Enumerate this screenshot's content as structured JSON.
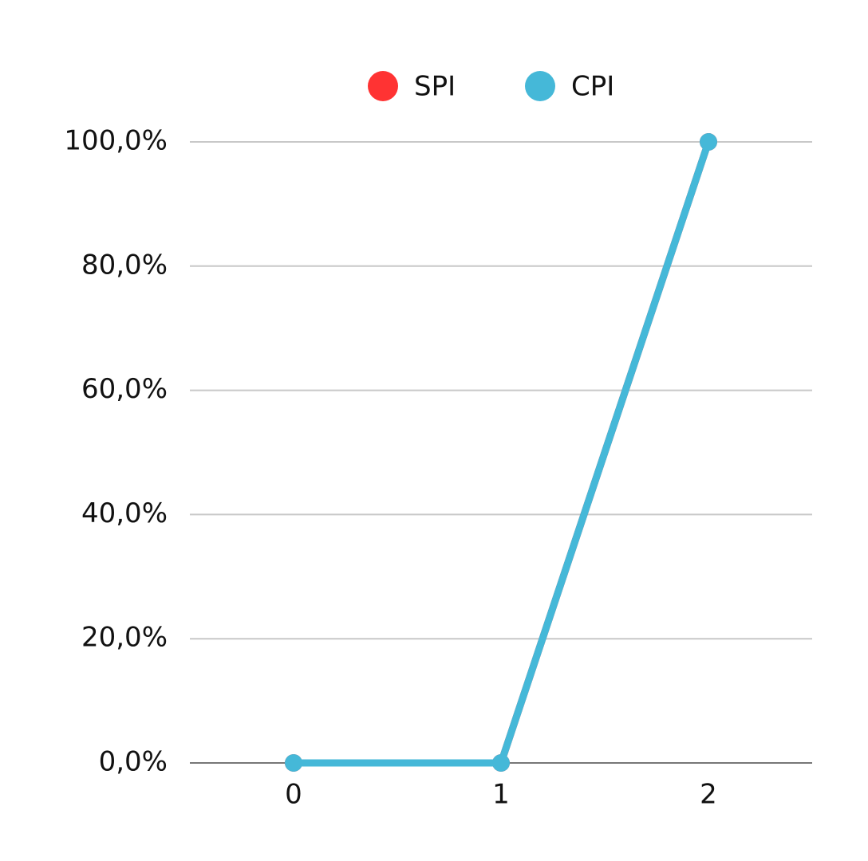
{
  "chart_data": {
    "type": "line",
    "categories": [
      "0",
      "1",
      "2"
    ],
    "series": [
      {
        "name": "SPI",
        "color": "#ff3333",
        "values": [
          0,
          0,
          100
        ]
      },
      {
        "name": "CPI",
        "color": "#45b8d8",
        "values": [
          0,
          0,
          100
        ]
      }
    ],
    "ylim": [
      0,
      100
    ],
    "yticks": [
      {
        "value": 0,
        "label": "0,0%"
      },
      {
        "value": 20,
        "label": "20,0%"
      },
      {
        "value": 40,
        "label": "40,0%"
      },
      {
        "value": 60,
        "label": "60,0%"
      },
      {
        "value": 80,
        "label": "80,0%"
      },
      {
        "value": 100,
        "label": "100,0%"
      }
    ],
    "grid": true,
    "legend": "top"
  }
}
